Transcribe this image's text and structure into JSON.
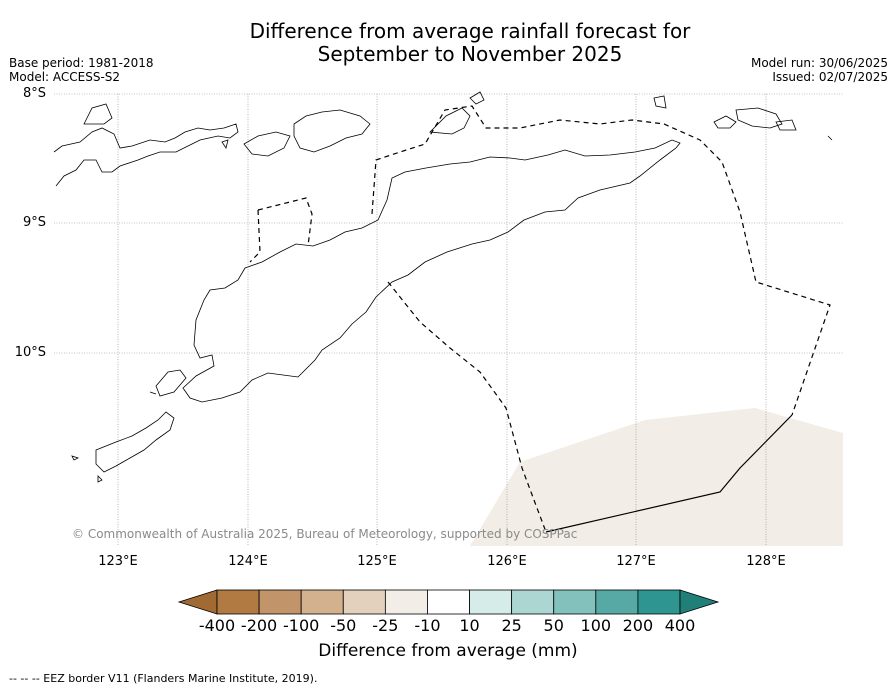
{
  "title_line1": "Difference from average rainfall forecast for",
  "title_line2": "September to November 2025",
  "base_period": "Base period: 1981-2018",
  "model": "Model: ACCESS-S2",
  "model_run": "Model run: 30/06/2025",
  "issued": "Issued: 02/07/2025",
  "lat_labels": [
    "8°S",
    "9°S",
    "10°S"
  ],
  "lon_labels": [
    "123°E",
    "124°E",
    "125°E",
    "126°E",
    "127°E",
    "128°E"
  ],
  "copyright": "© Commonwealth of Australia 2025, Bureau of Meteorology, supported by COSPPac",
  "colorbar": {
    "title": "Difference from average (mm)",
    "tick_labels": [
      "-400",
      "-200",
      "-100",
      "-50",
      "-25",
      "-10",
      "10",
      "25",
      "50",
      "100",
      "200",
      "400"
    ],
    "colors": [
      "#a06a32",
      "#b27a43",
      "#c2946a",
      "#d3b08e",
      "#e4d1bd",
      "#f2ede6",
      "#ffffff",
      "#d6ece8",
      "#acd6d2",
      "#82c1bc",
      "#57a9a6",
      "#2e9590",
      "#217f7a"
    ]
  },
  "footer": "--  --  -- EEZ border V11 (Flanders Marine Institute, 2019).",
  "shade_color": "#f2ede6"
}
